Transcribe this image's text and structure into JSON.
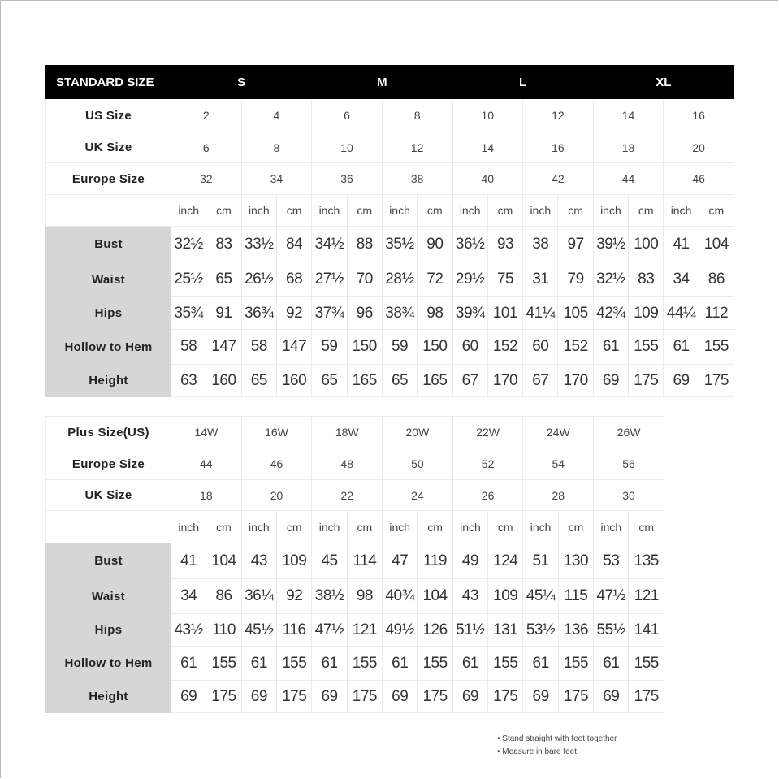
{
  "standard": {
    "header": {
      "title": "STANDARD SIZE",
      "groups": [
        "S",
        "M",
        "L",
        "XL"
      ]
    },
    "size_rows": [
      {
        "label": "US Size",
        "values": [
          "2",
          "4",
          "6",
          "8",
          "10",
          "12",
          "14",
          "16"
        ]
      },
      {
        "label": "UK Size",
        "values": [
          "6",
          "8",
          "10",
          "12",
          "14",
          "16",
          "18",
          "20"
        ]
      },
      {
        "label": "Europe Size",
        "values": [
          "32",
          "34",
          "36",
          "38",
          "40",
          "42",
          "44",
          "46"
        ]
      }
    ],
    "units": [
      "inch",
      "cm"
    ],
    "measurements": [
      {
        "label": "Bust",
        "values": [
          "32½",
          "83",
          "33½",
          "84",
          "34½",
          "88",
          "35½",
          "90",
          "36½",
          "93",
          "38",
          "97",
          "39½",
          "100",
          "41",
          "104"
        ]
      },
      {
        "label": "Waist",
        "values": [
          "25½",
          "65",
          "26½",
          "68",
          "27½",
          "70",
          "28½",
          "72",
          "29½",
          "75",
          "31",
          "79",
          "32½",
          "83",
          "34",
          "86"
        ]
      },
      {
        "label": "Hips",
        "values": [
          "35¾",
          "91",
          "36¾",
          "92",
          "37¾",
          "96",
          "38¾",
          "98",
          "39¾",
          "101",
          "41¼",
          "105",
          "42¾",
          "109",
          "44¼",
          "112"
        ]
      },
      {
        "label": "Hollow to Hem",
        "values": [
          "58",
          "147",
          "58",
          "147",
          "59",
          "150",
          "59",
          "150",
          "60",
          "152",
          "60",
          "152",
          "61",
          "155",
          "61",
          "155"
        ]
      },
      {
        "label": "Height",
        "values": [
          "63",
          "160",
          "65",
          "160",
          "65",
          "165",
          "65",
          "165",
          "67",
          "170",
          "67",
          "170",
          "69",
          "175",
          "69",
          "175"
        ]
      }
    ]
  },
  "plus": {
    "size_rows": [
      {
        "label": "Plus Size(US)",
        "values": [
          "14W",
          "16W",
          "18W",
          "20W",
          "22W",
          "24W",
          "26W"
        ]
      },
      {
        "label": "Europe Size",
        "values": [
          "44",
          "46",
          "48",
          "50",
          "52",
          "54",
          "56"
        ]
      },
      {
        "label": "UK Size",
        "values": [
          "18",
          "20",
          "22",
          "24",
          "26",
          "28",
          "30"
        ]
      }
    ],
    "units": [
      "inch",
      "cm"
    ],
    "measurements": [
      {
        "label": "Bust",
        "values": [
          "41",
          "104",
          "43",
          "109",
          "45",
          "114",
          "47",
          "119",
          "49",
          "124",
          "51",
          "130",
          "53",
          "135"
        ]
      },
      {
        "label": "Waist",
        "values": [
          "34",
          "86",
          "36¼",
          "92",
          "38½",
          "98",
          "40¾",
          "104",
          "43",
          "109",
          "45¼",
          "115",
          "47½",
          "121"
        ]
      },
      {
        "label": "Hips",
        "values": [
          "43½",
          "110",
          "45½",
          "116",
          "47½",
          "121",
          "49½",
          "126",
          "51½",
          "131",
          "53½",
          "136",
          "55½",
          "141"
        ]
      },
      {
        "label": "Hollow to Hem",
        "values": [
          "61",
          "155",
          "61",
          "155",
          "61",
          "155",
          "61",
          "155",
          "61",
          "155",
          "61",
          "155",
          "61",
          "155"
        ]
      },
      {
        "label": "Height",
        "values": [
          "69",
          "175",
          "69",
          "175",
          "69",
          "175",
          "69",
          "175",
          "69",
          "175",
          "69",
          "175",
          "69",
          "175"
        ]
      }
    ]
  },
  "notes": [
    "• Stand straight with feet together",
    "• Measure in bare feet."
  ]
}
